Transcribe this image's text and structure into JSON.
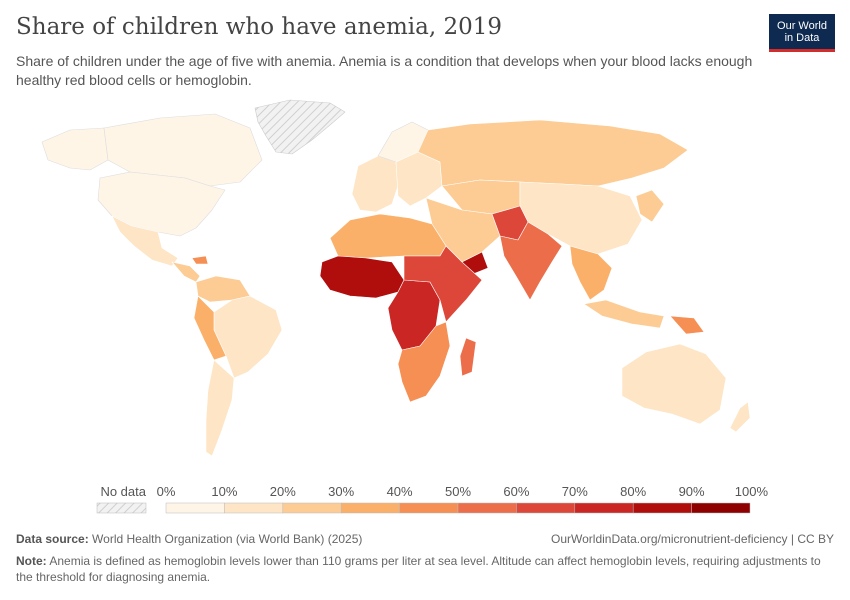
{
  "header": {
    "title": "Share of children who have anemia, 2019",
    "subtitle": "Share of children under the age of five with anemia. Anemia is a condition that develops when your blood lacks enough healthy red blood cells or hemoglobin.",
    "logo_line1": "Our World",
    "logo_line2": "in Data"
  },
  "legend": {
    "no_data_label": "No data",
    "ticks": [
      "0%",
      "10%",
      "20%",
      "30%",
      "40%",
      "50%",
      "60%",
      "70%",
      "80%",
      "90%",
      "100%"
    ],
    "colors": [
      "#fef5e7",
      "#fde5c5",
      "#fccc94",
      "#fbb06a",
      "#f58f53",
      "#ec6d4a",
      "#dd473a",
      "#c92624",
      "#b00d0d",
      "#8e0000"
    ],
    "no_data_color": "#e8e8e8"
  },
  "footer": {
    "source_label": "Data source:",
    "source_text": "World Health Organization (via World Bank) (2025)",
    "url": "OurWorldinData.org/micronutrient-deficiency | CC BY",
    "note_label": "Note:",
    "note_text": "Anemia is defined as hemoglobin levels lower than 110 grams per liter at sea level. Altitude can affect hemoglobin levels, requiring adjustments to the threshold for diagnosing anemia."
  }
}
